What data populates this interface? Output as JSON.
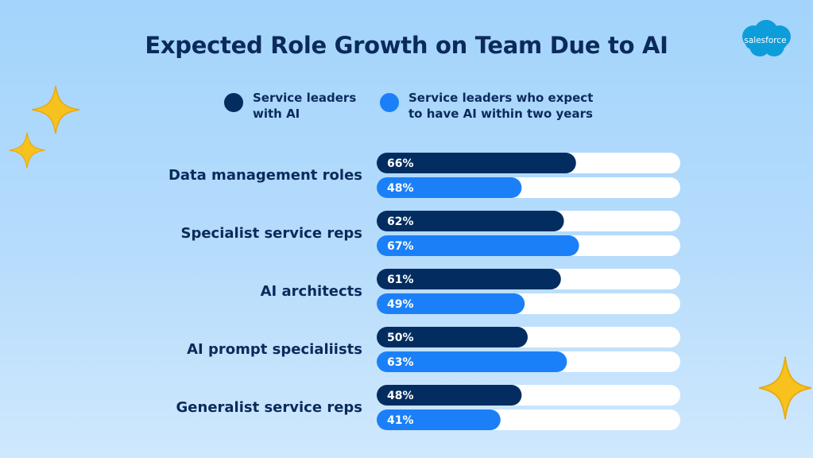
{
  "brand": {
    "logo_text": "salesforce",
    "logo_color": "#0d9dda"
  },
  "colors": {
    "dark_bar": "#032d60",
    "light_bar": "#1b80f8",
    "track": "#ffffff",
    "text": "#0b2a5b",
    "sparkle": "#f7c21e"
  },
  "chart_data": {
    "type": "bar",
    "orientation": "horizontal",
    "title": "Expected Role Growth on Team Due to AI",
    "xlim": [
      0,
      100
    ],
    "categories": [
      "Data management roles",
      "Specialist service reps",
      "AI architects",
      "AI prompt specialiists",
      "Generalist service reps"
    ],
    "series": [
      {
        "name": "Service leaders with AI",
        "legend_lines": [
          "Service leaders",
          "with AI"
        ],
        "color": "#032d60",
        "values": [
          66,
          62,
          61,
          50,
          48
        ],
        "labels": [
          "66%",
          "62%",
          "61%",
          "50%",
          "48%"
        ]
      },
      {
        "name": "Service leaders who expect to have AI within two years",
        "legend_lines": [
          "Service leaders who expect",
          "to have AI within two years"
        ],
        "color": "#1b80f8",
        "values": [
          48,
          67,
          49,
          63,
          41
        ],
        "labels": [
          "48%",
          "67%",
          "49%",
          "63%",
          "41%"
        ]
      }
    ],
    "legend_position": "top",
    "grid": false
  }
}
